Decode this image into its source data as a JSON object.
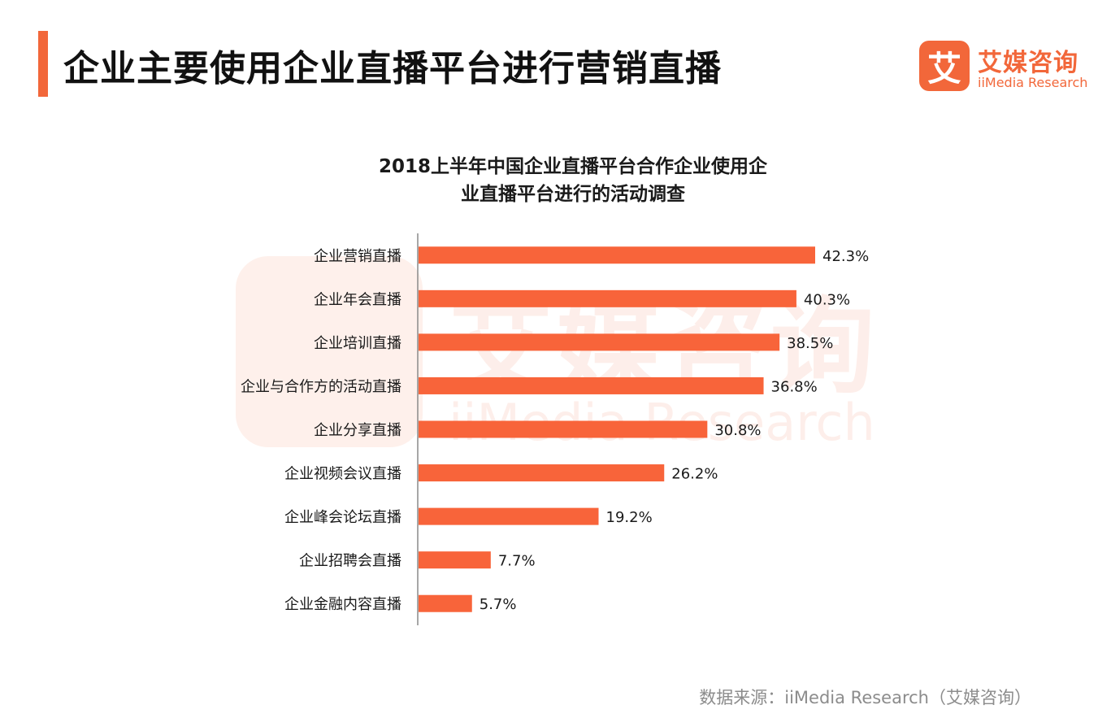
{
  "header": {
    "title": "企业主要使用企业直播平台进行营销直播"
  },
  "logo": {
    "mark": "艾",
    "name_cn": "艾媒咨询",
    "name_en": "iiMedia Research"
  },
  "watermark": {
    "cn": "艾媒咨询",
    "en": "iiMedia Research"
  },
  "chart_data": {
    "type": "bar",
    "orientation": "horizontal",
    "title_lines": [
      "2018上半年中国企业直播平台合作企业使用企",
      "业直播平台进行的活动调查"
    ],
    "categories": [
      "企业营销直播",
      "企业年会直播",
      "企业培训直播",
      "企业与合作方的活动直播",
      "企业分享直播",
      "企业视频会议直播",
      "企业峰会论坛直播",
      "企业招聘会直播",
      "企业金融内容直播"
    ],
    "values": [
      42.3,
      40.3,
      38.5,
      36.8,
      30.8,
      26.2,
      19.2,
      7.7,
      5.7
    ],
    "data_labels": [
      "42.3%",
      "40.3%",
      "38.5%",
      "36.8%",
      "30.8%",
      "26.2%",
      "19.2%",
      "7.7%",
      "5.7%"
    ],
    "unit": "%",
    "xlim": [
      0,
      45
    ],
    "grid": false,
    "legend": "none",
    "bar_color": "#f8643a"
  },
  "footer": {
    "source": "数据来源：iiMedia Research（艾媒咨询）"
  }
}
